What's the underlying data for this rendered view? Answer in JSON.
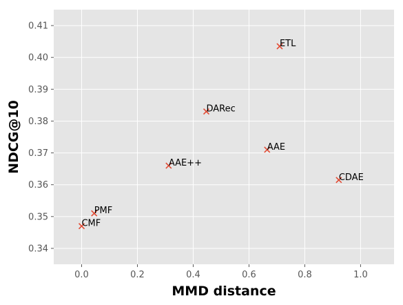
{
  "chart_data": {
    "type": "scatter",
    "title": "",
    "xlabel": "MMD distance",
    "ylabel": "NDCG@10",
    "xlim": [
      -0.1,
      1.12
    ],
    "ylim": [
      0.335,
      0.415
    ],
    "xticks": [
      0.0,
      0.2,
      0.4,
      0.6,
      0.8,
      1.0
    ],
    "xtick_labels": [
      "0.0",
      "0.2",
      "0.4",
      "0.6",
      "0.8",
      "1.0"
    ],
    "yticks": [
      0.34,
      0.35,
      0.36,
      0.37,
      0.38,
      0.39,
      0.4,
      0.41
    ],
    "ytick_labels": [
      "0.34",
      "0.35",
      "0.36",
      "0.37",
      "0.38",
      "0.39",
      "0.40",
      "0.41"
    ],
    "grid": true,
    "marker": "x",
    "colors": {
      "marker": "#e24a33",
      "background": "#e5e5e5",
      "grid": "#ffffff"
    },
    "points": [
      {
        "label": "CMF",
        "x": 0.0,
        "y": 0.347
      },
      {
        "label": "PMF",
        "x": 0.045,
        "y": 0.351
      },
      {
        "label": "AAE++",
        "x": 0.312,
        "y": 0.366
      },
      {
        "label": "DARec",
        "x": 0.447,
        "y": 0.383
      },
      {
        "label": "AAE",
        "x": 0.665,
        "y": 0.371
      },
      {
        "label": "ETL",
        "x": 0.71,
        "y": 0.4035
      },
      {
        "label": "CDAE",
        "x": 0.922,
        "y": 0.3615
      }
    ]
  }
}
